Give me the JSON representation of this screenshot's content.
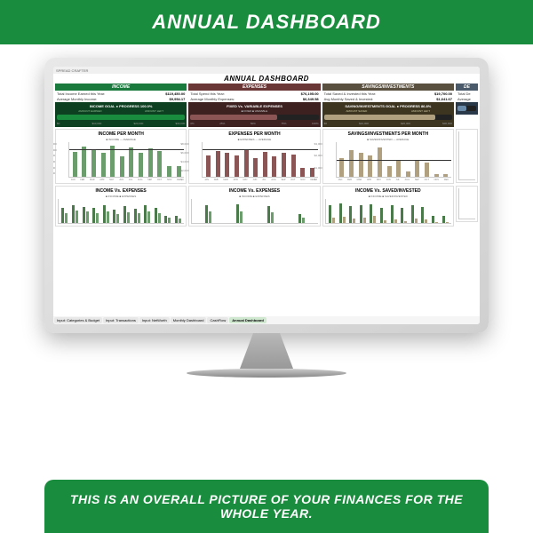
{
  "banner": {
    "top": "ANNUAL DASHBOARD",
    "bottom": "THIS IS AN OVERALL PICTURE OF YOUR FINANCES FOR THE WHOLE YEAR."
  },
  "sheet": {
    "logo": "SPREAD CRAFTER",
    "title": "ANNUAL DASHBOARD",
    "income": {
      "header": "INCOME",
      "stat1_label": "Total Income Earned this Year:",
      "stat1_value": "$119,450.00",
      "stat2_label": "Average Monthly Income:",
      "stat2_value": "$9,954.17",
      "goal_title": "INCOME GOAL ● PROGRESS 100.0%",
      "goal_sub1": "AMOUNT EARNED",
      "goal_sub2": "AMOUNT LEFT",
      "progress_pct": 100,
      "scale": [
        "$0",
        "$10,000",
        "$20,000",
        "$30,000"
      ],
      "chart_title": "INCOME PER MONTH",
      "chart_legend": "■ INCOME  — AVERAGE",
      "bars": [
        72,
        88,
        80,
        70,
        90,
        60,
        85,
        68,
        82,
        75,
        30,
        30
      ],
      "y_labels": [
        "$12,000",
        "$10,000",
        "$8,000",
        "$6,000",
        "$4,000",
        "$2,000",
        "$0"
      ],
      "months": [
        "JAN",
        "FEB",
        "MAR",
        "APR",
        "MAY",
        "JUN",
        "JUL",
        "AUG",
        "SEP",
        "OCT",
        "NOV",
        "DEC"
      ],
      "bottom_title": "INCOME Vs. EXPENSES",
      "bottom_sub": "MONTHLY TREND",
      "bottom_legend": "■ INCOME  ■ EXPENSES",
      "bottom_bars": [
        [
          60,
          40
        ],
        [
          70,
          50
        ],
        [
          65,
          45
        ],
        [
          60,
          38
        ],
        [
          72,
          48
        ],
        [
          55,
          35
        ],
        [
          68,
          42
        ],
        [
          58,
          40
        ],
        [
          70,
          45
        ],
        [
          62,
          40
        ],
        [
          30,
          20
        ],
        [
          28,
          18
        ]
      ]
    },
    "expenses": {
      "header": "EXPENSES",
      "stat1_label": "Total Spend this Year:",
      "stat1_value": "$76,195.00",
      "stat2_label": "Average Monthly Expenses:",
      "stat2_value": "$6,349.58",
      "goal_title": "FIXED Vs. VARIABLE EXPENSES",
      "goal_legend": "■ FIXED  ■ VARIABLE",
      "fixed_pct": 68,
      "scale": [
        "0%",
        "25%",
        "50%",
        "75%",
        "100%"
      ],
      "chart_title": "EXPENSES PER MONTH",
      "chart_legend": "■ EXPENSES  — AVERAGE",
      "bars": [
        62,
        75,
        70,
        62,
        80,
        55,
        72,
        60,
        70,
        65,
        25,
        25
      ],
      "y_labels": [
        "$8,000",
        "$6,000",
        "$4,000",
        "$2,000",
        "$0"
      ],
      "bottom_title": "INCOME Vs. EXPENSES",
      "bottom_sub": "QUARTERLY TREND",
      "bottom_legend": "■ INCOME  ■ EXPENSES",
      "bottom_bars": [
        [
          70,
          45
        ],
        [
          75,
          48
        ],
        [
          68,
          42
        ],
        [
          35,
          22
        ]
      ]
    },
    "savings": {
      "header": "SAVINGS/INVESTMENTS",
      "stat1_label": "Total Saved & Invested this Year:",
      "stat1_value": "$19,700.00",
      "stat2_label": "Avg Monthly Saved & Invested:",
      "stat2_value": "$1,641.67",
      "goal_title": "SAVING/INVESTMENTS GOAL ● PROGRESS 86.8%",
      "goal_sub1": "AMOUNT SAVED",
      "goal_sub2": "AMOUNT LEFT",
      "progress_pct": 87,
      "scale": [
        "$0",
        "$10,000",
        "$20,000",
        "$30,000"
      ],
      "chart_title": "SAVINGS/INVESTMENTS PER MONTH",
      "chart_legend": "■ SAVED/INVESTED  — AVERAGE",
      "bars": [
        55,
        78,
        70,
        62,
        85,
        30,
        45,
        15,
        50,
        42,
        8,
        8
      ],
      "y_labels": [
        "$3,000",
        "$2,000",
        "$1,000",
        "$0"
      ],
      "bottom_title": "INCOME Vs. SAVED/INVESTED",
      "bottom_legend": "■ INCOME  ■ SAVED/INVESTED",
      "bottom_bars": [
        [
          72,
          20
        ],
        [
          80,
          25
        ],
        [
          68,
          18
        ],
        [
          70,
          22
        ],
        [
          75,
          28
        ],
        [
          60,
          10
        ],
        [
          70,
          15
        ],
        [
          62,
          8
        ],
        [
          72,
          18
        ],
        [
          65,
          15
        ],
        [
          30,
          5
        ],
        [
          28,
          4
        ]
      ]
    },
    "other": {
      "header": "DE",
      "stat1_label": "Total De",
      "stat2_label": "Average"
    },
    "tabs": [
      "Input: Categories & Budget",
      "Input: Transactions",
      "Input: NetWorth",
      "Monthly Dashboard",
      "CashFlow",
      "Annual Dashboard"
    ]
  },
  "colors": {
    "green": "#1a8c3e",
    "green_dark": "#0d4020",
    "green_bar": "#6b9c6b",
    "brown": "#6b3636",
    "brown_bar": "#8b5555",
    "tan": "#5a5040",
    "tan_bar": "#b0a080"
  }
}
